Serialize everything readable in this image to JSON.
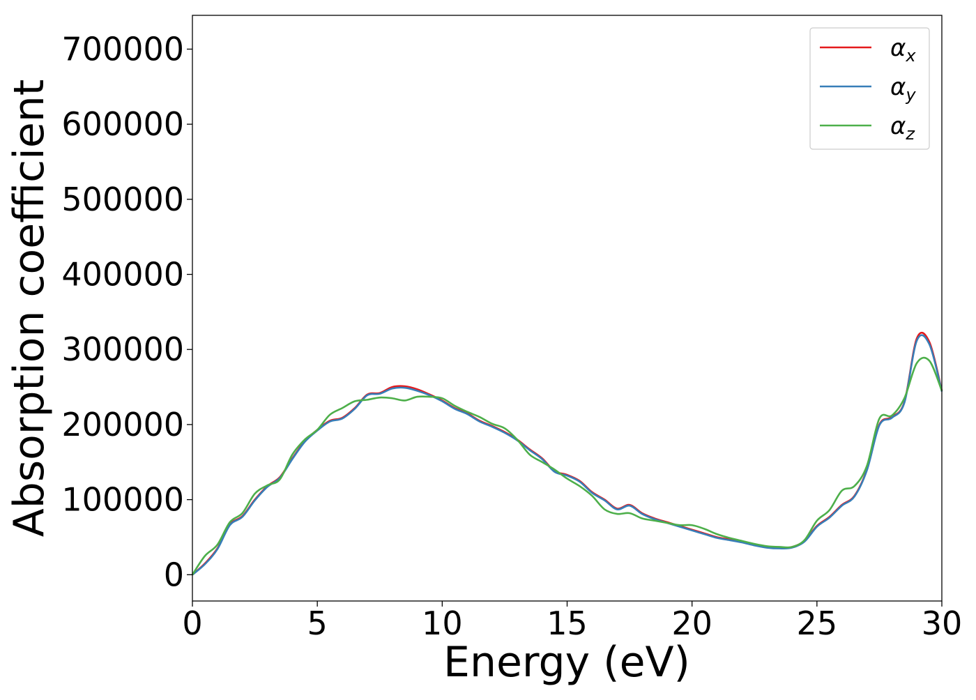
{
  "chart_data": {
    "type": "line",
    "title": "",
    "xlabel": "Energy (eV)",
    "ylabel": "Absorption coefficient",
    "xlim": [
      0,
      30
    ],
    "ylim": [
      -35000,
      745000
    ],
    "xticks": [
      0,
      5,
      10,
      15,
      20,
      25,
      30
    ],
    "xtick_labels": [
      "0",
      "5",
      "10",
      "15",
      "20",
      "25",
      "30"
    ],
    "yticks": [
      0,
      100000,
      200000,
      300000,
      400000,
      500000,
      600000,
      700000
    ],
    "ytick_labels": [
      "0",
      "100000",
      "200000",
      "300000",
      "400000",
      "500000",
      "600000",
      "700000"
    ],
    "grid": false,
    "legend_position": "top-right",
    "series": [
      {
        "name": "αx",
        "base": "α",
        "sub": "x",
        "color": "#e41a1c",
        "x": [
          0,
          0.5,
          1,
          1.5,
          2,
          2.5,
          3,
          3.5,
          4,
          4.5,
          5,
          5.5,
          6,
          6.5,
          7,
          7.5,
          8,
          8.5,
          9,
          9.5,
          10,
          10.5,
          11,
          11.5,
          12,
          12.5,
          13,
          13.5,
          14,
          14.5,
          15,
          15.5,
          16,
          16.5,
          17,
          17.5,
          18,
          18.5,
          19,
          19.5,
          20,
          20.5,
          21,
          21.5,
          22,
          22.5,
          23,
          23.5,
          24,
          24.5,
          25,
          25.5,
          26,
          26.5,
          27,
          27.5,
          28,
          28.5,
          29,
          29.5,
          30
        ],
        "values": [
          0,
          15000,
          35000,
          67000,
          78000,
          100000,
          118000,
          130000,
          155000,
          178000,
          193000,
          205000,
          209000,
          222000,
          240000,
          242000,
          250000,
          251000,
          247000,
          240000,
          232000,
          222000,
          215000,
          205000,
          198000,
          190000,
          180000,
          167000,
          155000,
          138000,
          133000,
          125000,
          110000,
          100000,
          88000,
          93000,
          82000,
          75000,
          70000,
          65000,
          60000,
          55000,
          50000,
          47000,
          44000,
          40000,
          37000,
          36000,
          37000,
          45000,
          65000,
          77000,
          93000,
          105000,
          140000,
          200000,
          210000,
          230000,
          315000,
          310000,
          245000
        ]
      },
      {
        "name": "αy",
        "base": "α",
        "sub": "y",
        "color": "#377eb8",
        "x": [
          0,
          0.5,
          1,
          1.5,
          2,
          2.5,
          3,
          3.5,
          4,
          4.5,
          5,
          5.5,
          6,
          6.5,
          7,
          7.5,
          8,
          8.5,
          9,
          9.5,
          10,
          10.5,
          11,
          11.5,
          12,
          12.5,
          13,
          13.5,
          14,
          14.5,
          15,
          15.5,
          16,
          16.5,
          17,
          17.5,
          18,
          18.5,
          19,
          19.5,
          20,
          20.5,
          21,
          21.5,
          22,
          22.5,
          23,
          23.5,
          24,
          24.5,
          25,
          25.5,
          26,
          26.5,
          27,
          27.5,
          28,
          28.5,
          29,
          29.5,
          30
        ],
        "values": [
          0,
          14000,
          34000,
          66000,
          77000,
          99000,
          117000,
          129000,
          154000,
          177000,
          192000,
          204000,
          208000,
          221000,
          239000,
          241000,
          248000,
          249000,
          245000,
          239000,
          231000,
          221000,
          214000,
          204000,
          197000,
          189000,
          179000,
          166000,
          154000,
          137000,
          132000,
          124000,
          109000,
          99000,
          87000,
          92000,
          81000,
          74000,
          69000,
          64000,
          59000,
          54000,
          49000,
          46000,
          43000,
          39000,
          36000,
          35000,
          36000,
          44000,
          64000,
          76000,
          92000,
          104000,
          139000,
          199000,
          209000,
          229000,
          312000,
          307000,
          244000
        ]
      },
      {
        "name": "αz",
        "base": "α",
        "sub": "z",
        "color": "#4daf4a",
        "x": [
          0,
          0.5,
          1,
          1.5,
          2,
          2.5,
          3,
          3.5,
          4,
          4.5,
          5,
          5.5,
          6,
          6.5,
          7,
          7.5,
          8,
          8.5,
          9,
          9.5,
          10,
          10.5,
          11,
          11.5,
          12,
          12.5,
          13,
          13.5,
          14,
          14.5,
          15,
          15.5,
          16,
          16.5,
          17,
          17.5,
          18,
          18.5,
          19,
          19.5,
          20,
          20.5,
          21,
          21.5,
          22,
          22.5,
          23,
          23.5,
          24,
          24.5,
          25,
          25.5,
          26,
          26.5,
          27,
          27.5,
          28,
          28.5,
          29,
          29.5,
          30
        ],
        "values": [
          0,
          25000,
          40000,
          70000,
          82000,
          108000,
          119000,
          127000,
          160000,
          180000,
          193000,
          213000,
          222000,
          231000,
          233000,
          236000,
          235000,
          232000,
          237000,
          237000,
          235000,
          225000,
          217000,
          210000,
          201000,
          195000,
          180000,
          160000,
          150000,
          140000,
          128000,
          118000,
          105000,
          87000,
          81000,
          82000,
          75000,
          72000,
          69000,
          66000,
          66000,
          61000,
          54000,
          49000,
          45000,
          41000,
          38000,
          37000,
          37000,
          46000,
          72000,
          86000,
          112000,
          118000,
          145000,
          208000,
          212000,
          235000,
          282000,
          285000,
          245000
        ]
      }
    ]
  }
}
